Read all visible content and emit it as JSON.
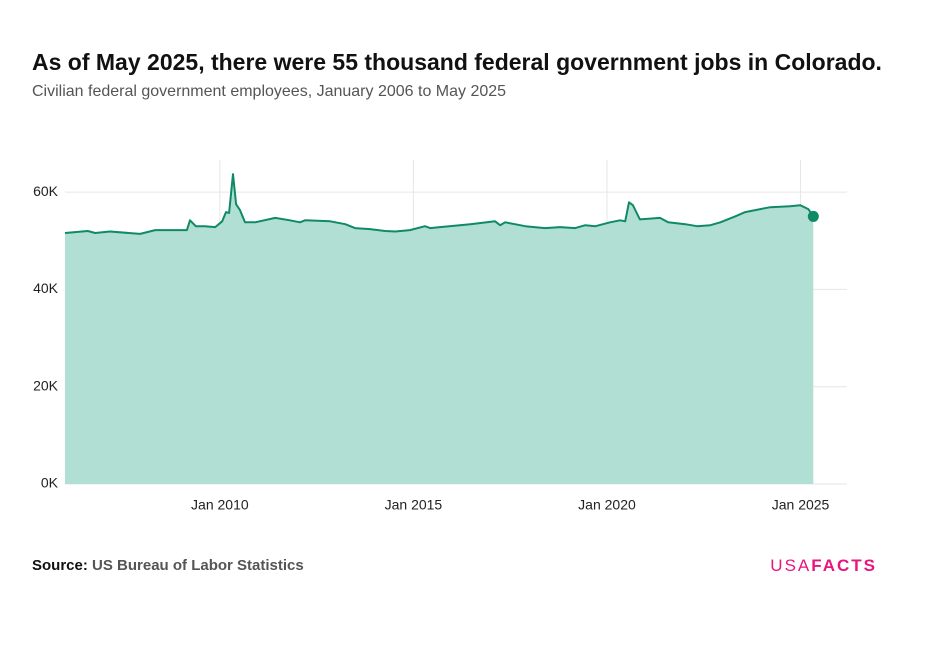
{
  "chart_data": {
    "type": "area",
    "title": "As of May 2025, there were 55 thousand federal government jobs in Colorado.",
    "subtitle": "Civilian federal government employees, January 2006 to May 2025",
    "x": [
      2006.0,
      2006.59,
      2006.78,
      2007.16,
      2007.94,
      2008.33,
      2009.15,
      2009.23,
      2009.38,
      2009.62,
      2009.88,
      2010.06,
      2010.16,
      2010.24,
      2010.34,
      2010.42,
      2010.52,
      2010.65,
      2010.91,
      2011.43,
      2011.81,
      2012.07,
      2012.2,
      2012.85,
      2013.24,
      2013.49,
      2013.88,
      2014.27,
      2014.53,
      2014.91,
      2015.3,
      2015.43,
      2015.69,
      2016.47,
      2017.11,
      2017.24,
      2017.37,
      2017.89,
      2018.4,
      2018.79,
      2019.18,
      2019.44,
      2019.7,
      2020.08,
      2020.34,
      2020.47,
      2020.57,
      2020.67,
      2020.85,
      2021.37,
      2021.58,
      2022.02,
      2022.33,
      2022.67,
      2022.93,
      2023.31,
      2023.57,
      2023.96,
      2024.22,
      2024.73,
      2024.99,
      2025.2,
      2025.33
    ],
    "values": [
      51600,
      52000,
      51600,
      51900,
      51400,
      52200,
      52200,
      54200,
      53000,
      53000,
      52800,
      54000,
      55900,
      55700,
      63700,
      57500,
      56300,
      53800,
      53800,
      54700,
      54200,
      53800,
      54200,
      54000,
      53400,
      52600,
      52400,
      52000,
      51900,
      52200,
      53000,
      52600,
      52800,
      53400,
      54000,
      53200,
      53800,
      53000,
      52600,
      52800,
      52600,
      53200,
      53000,
      53800,
      54200,
      54000,
      57900,
      57300,
      54400,
      54700,
      53800,
      53400,
      53000,
      53200,
      53800,
      55000,
      55900,
      56500,
      56900,
      57100,
      57300,
      56500,
      55000
    ],
    "color": "#0f8a66",
    "fill_color": "#b2dfd3",
    "xlim": [
      2006,
      2026.2
    ],
    "xticks": [
      {
        "value": 2010,
        "label": "Jan 2010"
      },
      {
        "value": 2015,
        "label": "Jan 2015"
      },
      {
        "value": 2020,
        "label": "Jan 2020"
      },
      {
        "value": 2025,
        "label": "Jan 2025"
      }
    ],
    "ylim": [
      0,
      66600
    ],
    "yticks": [
      {
        "value": 0,
        "label": "0K"
      },
      {
        "value": 20000,
        "label": "20K"
      },
      {
        "value": 40000,
        "label": "40K"
      },
      {
        "value": 60000,
        "label": "60K"
      }
    ],
    "grid": true,
    "source_label": "Source:",
    "source": "US Bureau of Labor Statistics",
    "logo": {
      "light": "USA",
      "bold": "FACTS"
    }
  }
}
